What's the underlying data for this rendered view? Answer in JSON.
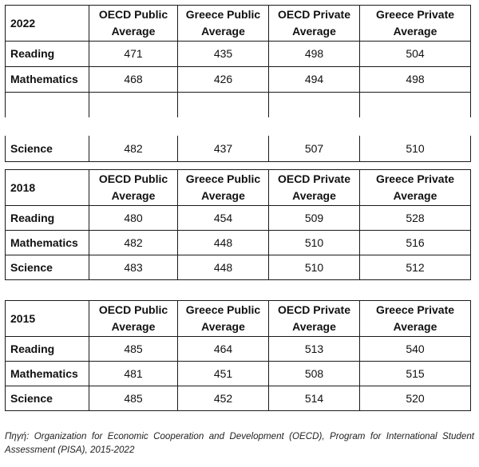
{
  "columns": [
    "OECD Public Average",
    "Greece Public Average",
    "OECD Private Average",
    "Greece Private Average"
  ],
  "tables": [
    {
      "year": "2022",
      "rows": [
        {
          "subject": "Reading",
          "values": [
            "471",
            "435",
            "498",
            "504"
          ]
        },
        {
          "subject": "Mathematics",
          "values": [
            "468",
            "426",
            "494",
            "498"
          ]
        },
        {
          "subject": "Science",
          "values": [
            "482",
            "437",
            "507",
            "510"
          ]
        }
      ]
    },
    {
      "year": "2018",
      "rows": [
        {
          "subject": "Reading",
          "values": [
            "480",
            "454",
            "509",
            "528"
          ]
        },
        {
          "subject": "Mathematics",
          "values": [
            "482",
            "448",
            "510",
            "516"
          ]
        },
        {
          "subject": "Science",
          "values": [
            "483",
            "448",
            "510",
            "512"
          ]
        }
      ]
    },
    {
      "year": "2015",
      "rows": [
        {
          "subject": "Reading",
          "values": [
            "485",
            "464",
            "513",
            "540"
          ]
        },
        {
          "subject": "Mathematics",
          "values": [
            "481",
            "451",
            "508",
            "515"
          ]
        },
        {
          "subject": "Science",
          "values": [
            "485",
            "452",
            "514",
            "520"
          ]
        }
      ]
    }
  ],
  "source_label": "Πηγή:",
  "source_text": "Organization for Economic Cooperation and Development (OECD), Program for International Student Assessment (PISA), 2015-2022"
}
